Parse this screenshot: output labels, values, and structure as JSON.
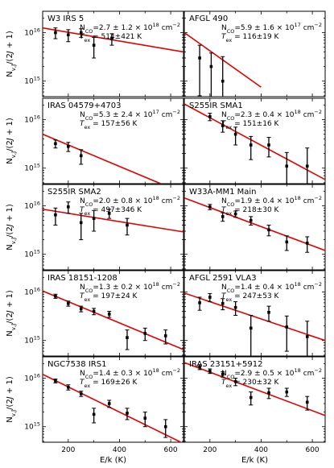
{
  "figure": {
    "ylabel": "N_{v,J}/(2J + 1)",
    "xlabel": "E/k (K)",
    "x_ticks": [
      200,
      400,
      600
    ],
    "y_tick_labels": {
      "t15": "10",
      "t15_exp": "15",
      "t16": "10",
      "t16_exp": "16"
    }
  },
  "chart_data": [
    {
      "type": "scatter",
      "title": "W3 IRS 5",
      "ncol_text": "N",
      "ncol_sub": "CO",
      "ncol_value": "=2.7 ± 1.2 × 10",
      "ncol_exp": "18",
      "ncol_unit": " cm",
      "ncol_unit_exp": "−2",
      "tex_text": "T",
      "tex_sub": "ex",
      "tex_value": " = 514±421 K",
      "xlim": [
        100,
        650
      ],
      "ylim_log10": [
        14.68,
        16.44
      ],
      "points": [
        {
          "x": 150,
          "y": 1e+16,
          "err": 2500000000000000.0
        },
        {
          "x": 200,
          "y": 9000000000000000.0,
          "err": 2500000000000000.0
        },
        {
          "x": 250,
          "y": 1e+16,
          "err": 2000000000000000.0
        },
        {
          "x": 300,
          "y": 5500000000000000.0,
          "err": 2500000000000000.0
        },
        {
          "x": 370,
          "y": 7500000000000000.0,
          "err": 2000000000000000.0
        }
      ],
      "fit": {
        "x1": 100,
        "y1": 1.25e+16,
        "x2": 650,
        "y2": 4000000000000000.0
      }
    },
    {
      "type": "scatter",
      "title": "AFGL 490",
      "ncol_text": "N",
      "ncol_sub": "CO",
      "ncol_value": "=5.9 ± 1.6 × 10",
      "ncol_exp": "17",
      "ncol_unit": " cm",
      "ncol_unit_exp": "−2",
      "tex_text": "T",
      "tex_sub": "ex",
      "tex_value": " = 116±19 K",
      "xlim": [
        100,
        650
      ],
      "ylim_log10": [
        14.68,
        16.44
      ],
      "points": [
        {
          "x": 160,
          "y": 3000000000000000.0,
          "err": 2500000000000000.0
        },
        {
          "x": 205,
          "y": 2000000000000000.0,
          "err": 1800000000000000.0
        },
        {
          "x": 250,
          "y": 1000000000000000.0,
          "err": 2200000000000000.0
        }
      ],
      "fit": {
        "x1": 100,
        "y1": 1e+16,
        "x2": 400,
        "y2": 750000000000000.0
      }
    },
    {
      "type": "scatter",
      "title": "IRAS 04579+4703",
      "ncol_text": "N",
      "ncol_sub": "CO",
      "ncol_value": "=5.3 ± 2.4 × 10",
      "ncol_exp": "17",
      "ncol_unit": " cm",
      "ncol_unit_exp": "−2",
      "tex_text": "T",
      "tex_sub": "ex",
      "tex_value": " = 157±56 K",
      "xlim": [
        100,
        650
      ],
      "ylim_log10": [
        14.68,
        16.44
      ],
      "points": [
        {
          "x": 150,
          "y": 3200000000000000.0,
          "err": 600000000000000.0
        },
        {
          "x": 200,
          "y": 2800000000000000.0,
          "err": 600000000000000.0
        },
        {
          "x": 250,
          "y": 1800000000000000.0,
          "err": 600000000000000.0
        }
      ],
      "fit": {
        "x1": 100,
        "y1": 5000000000000000.0,
        "x2": 560,
        "y2": 480000000000000.0
      }
    },
    {
      "type": "scatter",
      "title": "S255IR SMA1",
      "ncol_text": "N",
      "ncol_sub": "CO",
      "ncol_value": "=2.3 ± 0.4 × 10",
      "ncol_exp": "18",
      "ncol_unit": " cm",
      "ncol_unit_exp": "−2",
      "tex_text": "T",
      "tex_sub": "ex",
      "tex_value": " = 151±16 K",
      "xlim": [
        100,
        650
      ],
      "ylim_log10": [
        14.68,
        16.44
      ],
      "points": [
        {
          "x": 200,
          "y": 1.15e+16,
          "err": 2000000000000000.0
        },
        {
          "x": 250,
          "y": 7500000000000000.0,
          "err": 2000000000000000.0
        },
        {
          "x": 300,
          "y": 5000000000000000.0,
          "err": 2000000000000000.0
        },
        {
          "x": 360,
          "y": 3000000000000000.0,
          "err": 1500000000000000.0
        },
        {
          "x": 430,
          "y": 3000000000000000.0,
          "err": 1300000000000000.0
        },
        {
          "x": 500,
          "y": 1100000000000000.0,
          "err": 1000000000000000.0
        },
        {
          "x": 580,
          "y": 1100000000000000.0,
          "err": 1500000000000000.0
        }
      ],
      "fit": {
        "x1": 100,
        "y1": 2.1e+16,
        "x2": 650,
        "y2": 580000000000000.0
      }
    },
    {
      "type": "scatter",
      "title": "S255IR SMA2",
      "ncol_text": "N",
      "ncol_sub": "CO",
      "ncol_value": "=2.0 ± 0.8 × 10",
      "ncol_exp": "18",
      "ncol_unit": " cm",
      "ncol_unit_exp": "−2",
      "tex_text": "T",
      "tex_sub": "ex",
      "tex_value": " = 497±346 K",
      "xlim": [
        100,
        650
      ],
      "ylim_log10": [
        14.68,
        16.44
      ],
      "points": [
        {
          "x": 150,
          "y": 6500000000000000.0,
          "err": 2500000000000000.0
        },
        {
          "x": 200,
          "y": 9500000000000000.0,
          "err": 2500000000000000.0
        },
        {
          "x": 250,
          "y": 4500000000000000.0,
          "err": 2500000000000000.0
        },
        {
          "x": 300,
          "y": 5500000000000000.0,
          "err": 2500000000000000.0
        },
        {
          "x": 360,
          "y": 7000000000000000.0,
          "err": 1500000000000000.0
        },
        {
          "x": 430,
          "y": 4000000000000000.0,
          "err": 1500000000000000.0
        }
      ],
      "fit": {
        "x1": 100,
        "y1": 8500000000000000.0,
        "x2": 650,
        "y2": 2900000000000000.0
      }
    },
    {
      "type": "scatter",
      "title": "W33A-MM1 Main",
      "ncol_text": "N",
      "ncol_sub": "CO",
      "ncol_value": "=1.9 ± 0.4 × 10",
      "ncol_exp": "18",
      "ncol_unit": " cm",
      "ncol_unit_exp": "−2",
      "tex_text": "T",
      "tex_sub": "ex",
      "tex_value": " = 218±30 K",
      "xlim": [
        100,
        650
      ],
      "ylim_log10": [
        14.68,
        16.44
      ],
      "points": [
        {
          "x": 200,
          "y": 9500000000000000.0,
          "err": 1200000000000000.0
        },
        {
          "x": 250,
          "y": 6000000000000000.0,
          "err": 1200000000000000.0
        },
        {
          "x": 300,
          "y": 6800000000000000.0,
          "err": 1000000000000000.0
        },
        {
          "x": 360,
          "y": 5000000000000000.0,
          "err": 1000000000000000.0
        },
        {
          "x": 430,
          "y": 3200000000000000.0,
          "err": 800000000000000.0
        },
        {
          "x": 500,
          "y": 1800000000000000.0,
          "err": 600000000000000.0
        },
        {
          "x": 580,
          "y": 1700000000000000.0,
          "err": 600000000000000.0
        }
      ],
      "fit": {
        "x1": 100,
        "y1": 1.45e+16,
        "x2": 650,
        "y2": 1200000000000000.0
      }
    },
    {
      "type": "scatter",
      "title": "IRAS 18151-1208",
      "ncol_text": "N",
      "ncol_sub": "CO",
      "ncol_value": "=1.3 ± 0.2 × 10",
      "ncol_exp": "18",
      "ncol_unit": " cm",
      "ncol_unit_exp": "−2",
      "tex_text": "T",
      "tex_sub": "ex",
      "tex_value": " = 197±24 K",
      "xlim": [
        100,
        650
      ],
      "ylim_log10": [
        14.68,
        16.44
      ],
      "points": [
        {
          "x": 150,
          "y": 8200000000000000.0,
          "err": 800000000000000.0
        },
        {
          "x": 200,
          "y": 5800000000000000.0,
          "err": 700000000000000.0
        },
        {
          "x": 250,
          "y": 4500000000000000.0,
          "err": 600000000000000.0
        },
        {
          "x": 300,
          "y": 4000000000000000.0,
          "err": 600000000000000.0
        },
        {
          "x": 360,
          "y": 3500000000000000.0,
          "err": 500000000000000.0
        },
        {
          "x": 430,
          "y": 1150000000000000.0,
          "err": 500000000000000.0
        },
        {
          "x": 500,
          "y": 1400000000000000.0,
          "err": 400000000000000.0
        },
        {
          "x": 580,
          "y": 1250000000000000.0,
          "err": 400000000000000.0
        }
      ],
      "fit": {
        "x1": 100,
        "y1": 1.05e+16,
        "x2": 650,
        "y2": 650000000000000.0
      }
    },
    {
      "type": "scatter",
      "title": "AFGL 2591 VLA3",
      "ncol_text": "N",
      "ncol_sub": "CO",
      "ncol_value": "=1.4 ± 0.4 × 10",
      "ncol_exp": "18",
      "ncol_unit": " cm",
      "ncol_unit_exp": "−2",
      "tex_text": "T",
      "tex_sub": "ex",
      "tex_value": " = 247±53 K",
      "xlim": [
        100,
        650
      ],
      "ylim_log10": [
        14.68,
        16.44
      ],
      "points": [
        {
          "x": 160,
          "y": 6000000000000000.0,
          "err": 1800000000000000.0
        },
        {
          "x": 200,
          "y": 7800000000000000.0,
          "err": 1500000000000000.0
        },
        {
          "x": 250,
          "y": 5800000000000000.0,
          "err": 1500000000000000.0
        },
        {
          "x": 300,
          "y": 4800000000000000.0,
          "err": 1500000000000000.0
        },
        {
          "x": 360,
          "y": 1800000000000000.0,
          "err": 1500000000000000.0
        },
        {
          "x": 430,
          "y": 3800000000000000.0,
          "err": 1300000000000000.0
        },
        {
          "x": 500,
          "y": 1900000000000000.0,
          "err": 1300000000000000.0
        },
        {
          "x": 580,
          "y": 1200000000000000.0,
          "err": 1300000000000000.0
        }
      ],
      "fit": {
        "x1": 100,
        "y1": 9500000000000000.0,
        "x2": 650,
        "y2": 1000000000000000.0
      }
    },
    {
      "type": "scatter",
      "title": "NGC7538 IRS1",
      "ncol_text": "N",
      "ncol_sub": "CO",
      "ncol_value": "=1.4 ± 0.3 × 10",
      "ncol_exp": "18",
      "ncol_unit": " cm",
      "ncol_unit_exp": "−2",
      "tex_text": "T",
      "tex_sub": "ex",
      "tex_value": " = 169±26 K",
      "xlim": [
        100,
        650
      ],
      "ylim_log10": [
        14.68,
        16.44
      ],
      "points": [
        {
          "x": 150,
          "y": 8800000000000000.0,
          "err": 800000000000000.0
        },
        {
          "x": 200,
          "y": 6500000000000000.0,
          "err": 800000000000000.0
        },
        {
          "x": 250,
          "y": 4800000000000000.0,
          "err": 600000000000000.0
        },
        {
          "x": 300,
          "y": 1800000000000000.0,
          "err": 600000000000000.0
        },
        {
          "x": 360,
          "y": 3000000000000000.0,
          "err": 500000000000000.0
        },
        {
          "x": 430,
          "y": 1900000000000000.0,
          "err": 500000000000000.0
        },
        {
          "x": 500,
          "y": 1500000000000000.0,
          "err": 500000000000000.0
        },
        {
          "x": 580,
          "y": 1000000000000000.0,
          "err": 400000000000000.0
        }
      ],
      "fit": {
        "x1": 100,
        "y1": 1.2e+16,
        "x2": 650,
        "y2": 450000000000000.0
      }
    },
    {
      "type": "scatter",
      "title": "IRAS 23151+5912",
      "ncol_text": "N",
      "ncol_sub": "CO",
      "ncol_value": "=2.9 ± 0.5 × 10",
      "ncol_exp": "18",
      "ncol_unit": " cm",
      "ncol_unit_exp": "−2",
      "tex_text": "T",
      "tex_sub": "ex",
      "tex_value": " = 230±32 K",
      "xlim": [
        100,
        650
      ],
      "ylim_log10": [
        14.68,
        16.44
      ],
      "points": [
        {
          "x": 160,
          "y": 1.7e+16,
          "err": 2000000000000000.0
        },
        {
          "x": 200,
          "y": 1.4e+16,
          "err": 1500000000000000.0
        },
        {
          "x": 250,
          "y": 1.2e+16,
          "err": 1500000000000000.0
        },
        {
          "x": 300,
          "y": 8500000000000000.0,
          "err": 1500000000000000.0
        },
        {
          "x": 360,
          "y": 4000000000000000.0,
          "err": 1200000000000000.0
        },
        {
          "x": 430,
          "y": 5000000000000000.0,
          "err": 1200000000000000.0
        },
        {
          "x": 500,
          "y": 5200000000000000.0,
          "err": 1000000000000000.0
        },
        {
          "x": 580,
          "y": 3200000000000000.0,
          "err": 1000000000000000.0
        }
      ],
      "fit": {
        "x1": 100,
        "y1": 2.1e+16,
        "x2": 650,
        "y2": 1700000000000000.0
      }
    }
  ]
}
